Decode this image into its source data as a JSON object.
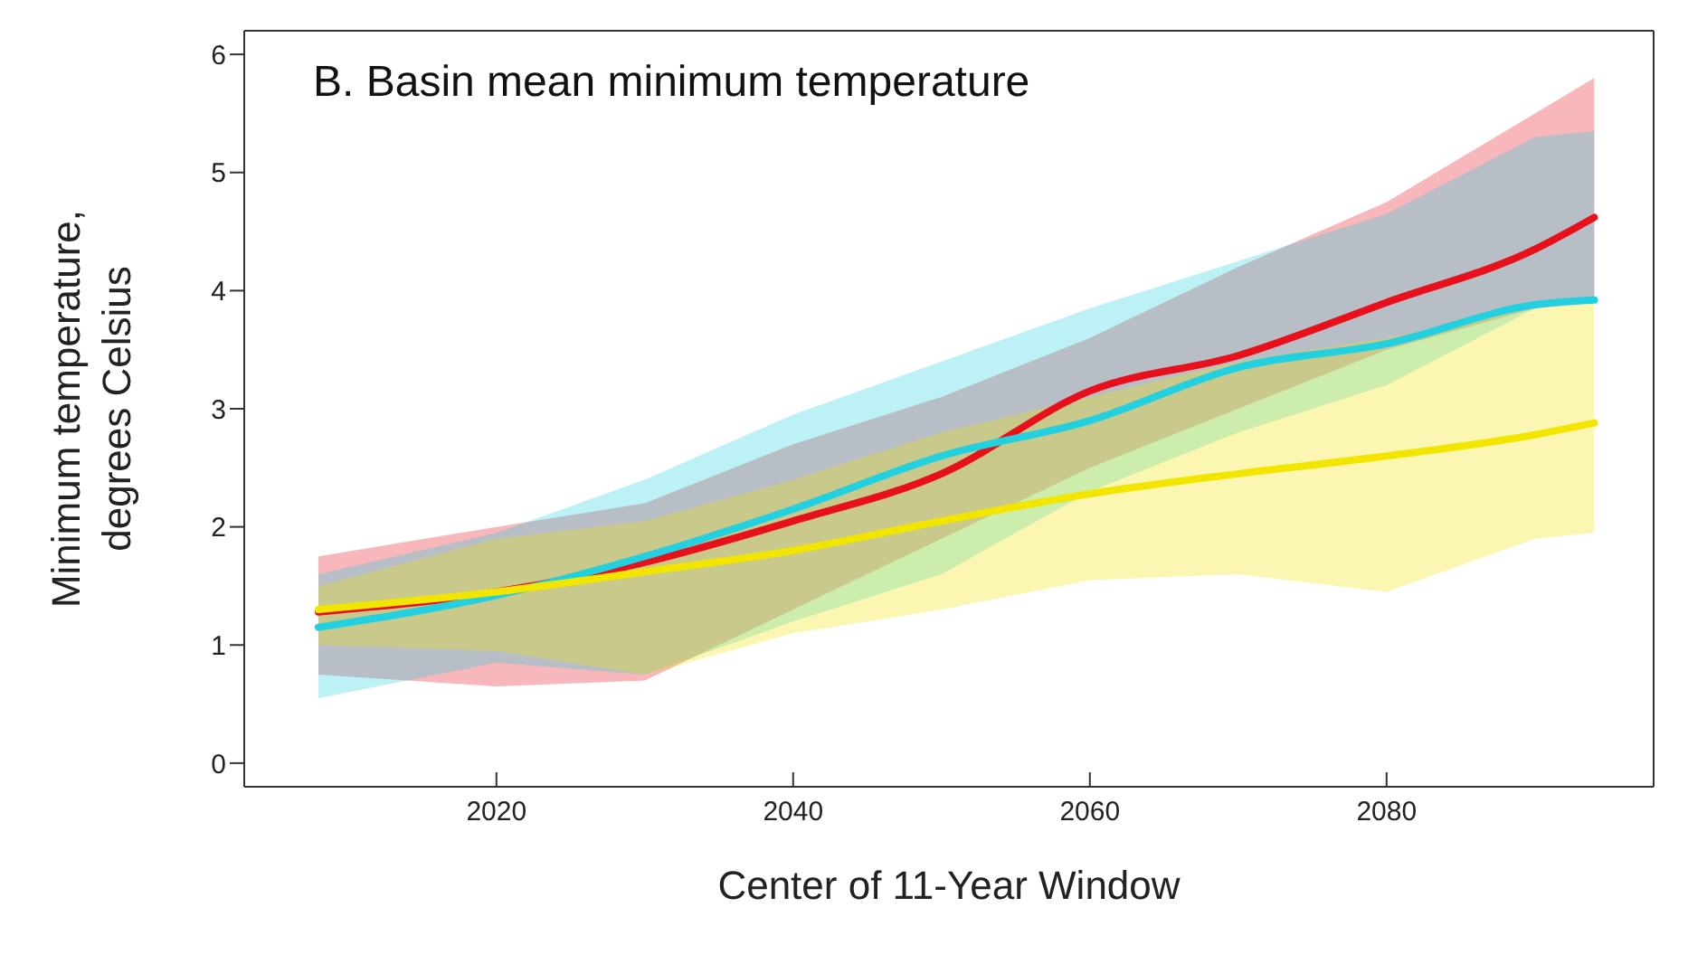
{
  "chart_data": {
    "type": "line",
    "title": "B. Basin mean minimum temperature",
    "xlabel": "Center of 11-Year Window",
    "ylabel": "Minimum temperature, degrees Celsius",
    "x": [
      2008,
      2020,
      2030,
      2040,
      2050,
      2060,
      2070,
      2080,
      2090,
      2094
    ],
    "series": [
      {
        "color": "#e8101a",
        "values": [
          1.28,
          1.45,
          1.7,
          2.05,
          2.45,
          3.15,
          3.45,
          3.9,
          4.35,
          4.62
        ],
        "lower": [
          0.75,
          0.65,
          0.7,
          1.3,
          1.9,
          2.5,
          3.0,
          3.5,
          3.85,
          3.9
        ],
        "upper": [
          1.75,
          2.0,
          2.2,
          2.7,
          3.1,
          3.6,
          4.2,
          4.75,
          5.5,
          5.8
        ]
      },
      {
        "color": "#22d0e0",
        "values": [
          1.15,
          1.42,
          1.75,
          2.15,
          2.6,
          2.9,
          3.35,
          3.55,
          3.88,
          3.92
        ],
        "lower": [
          0.55,
          0.85,
          0.75,
          1.2,
          1.6,
          2.3,
          2.8,
          3.2,
          3.85,
          3.9
        ],
        "upper": [
          1.6,
          1.95,
          2.4,
          2.95,
          3.4,
          3.85,
          4.25,
          4.65,
          5.3,
          5.35
        ]
      },
      {
        "color": "#f2e600",
        "values": [
          1.3,
          1.45,
          1.62,
          1.8,
          2.05,
          2.28,
          2.45,
          2.6,
          2.78,
          2.88
        ],
        "lower": [
          1.0,
          0.95,
          0.75,
          1.1,
          1.3,
          1.55,
          1.6,
          1.45,
          1.9,
          1.95
        ],
        "upper": [
          1.5,
          1.9,
          2.05,
          2.4,
          2.8,
          3.1,
          3.4,
          3.6,
          3.85,
          3.9
        ]
      }
    ],
    "xlim": [
      2003,
      2098
    ],
    "xticks": [
      2020,
      2040,
      2060,
      2080
    ],
    "ylim": [
      -0.2,
      6.2
    ],
    "yticks": [
      0,
      1,
      2,
      3,
      4,
      5,
      6
    ],
    "grid": false,
    "marker": "none",
    "line_style": "solid"
  }
}
